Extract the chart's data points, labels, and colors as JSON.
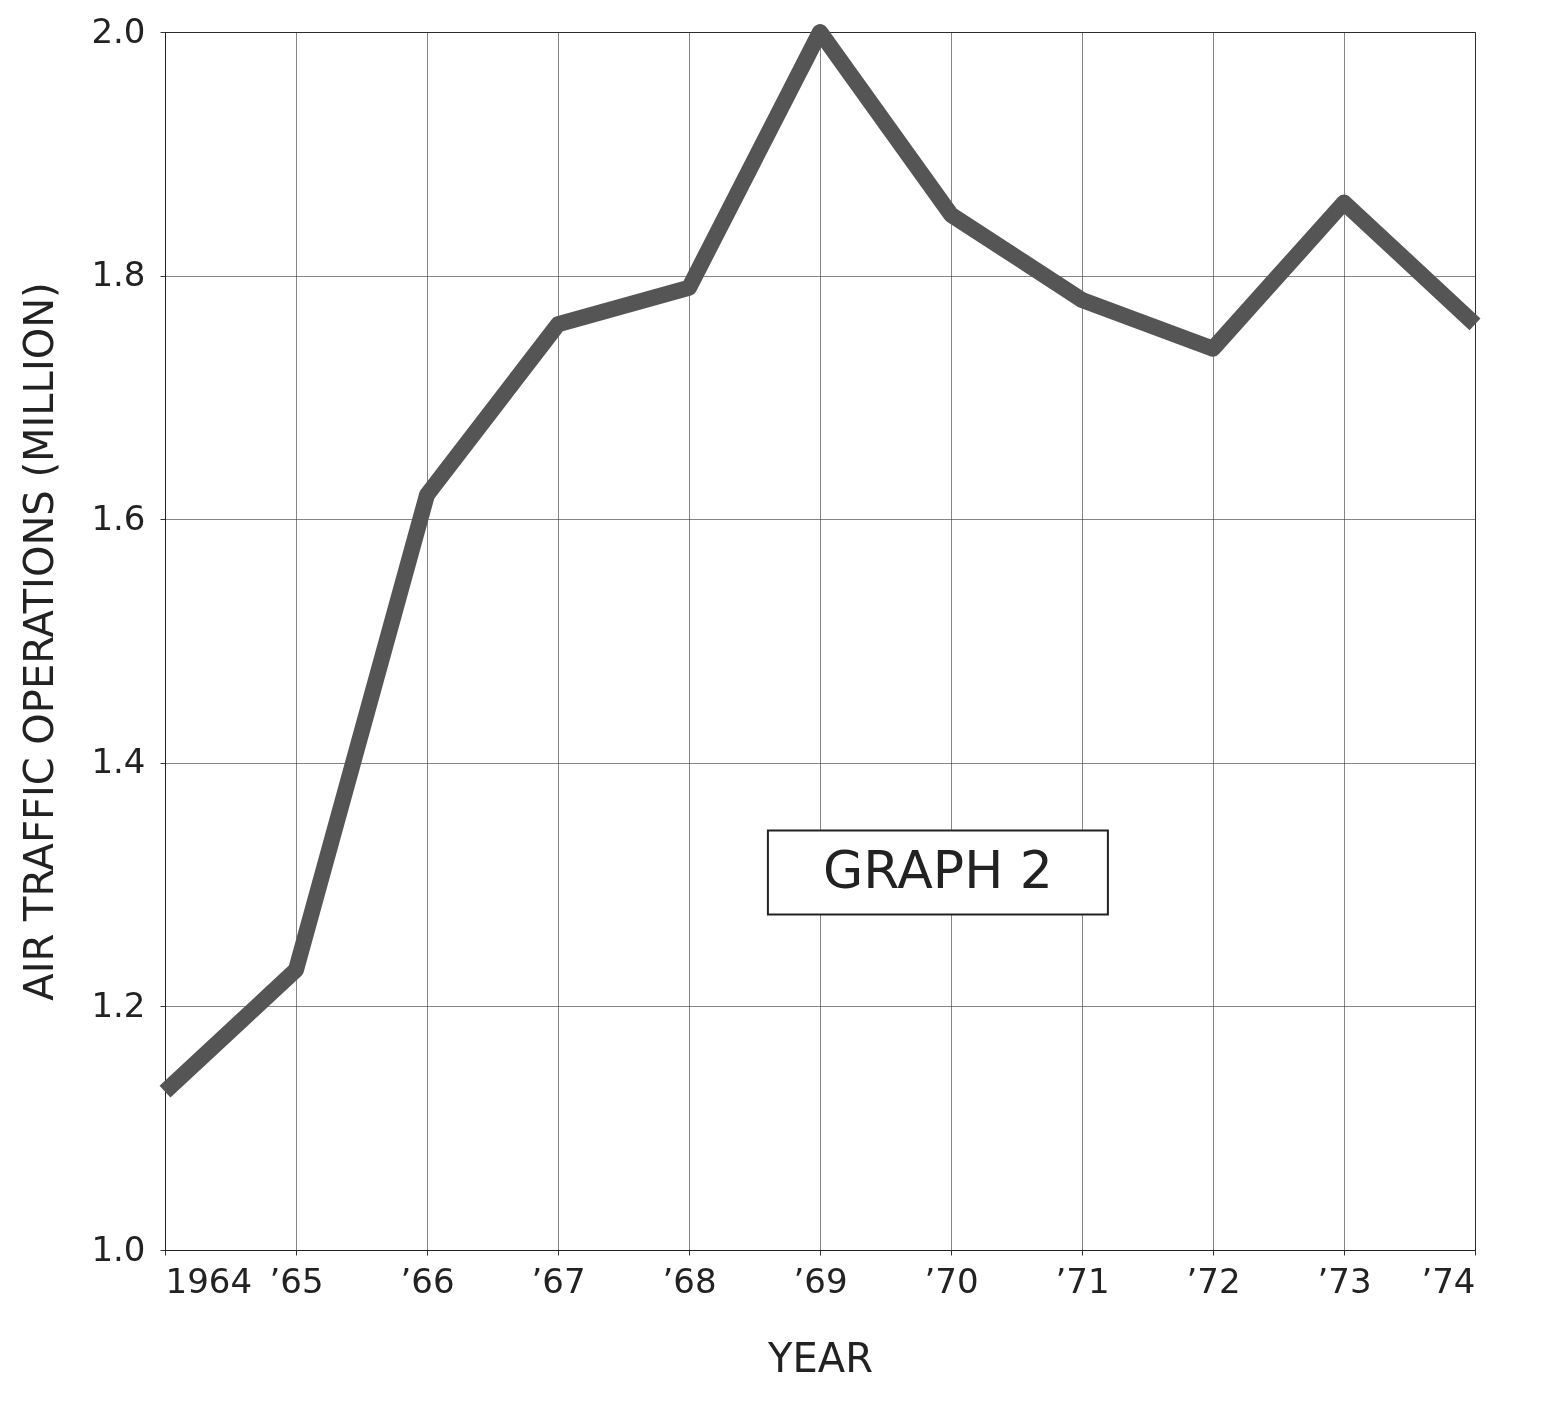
{
  "chart_data": {
    "type": "line",
    "xlabel": "YEAR",
    "ylabel": "AIR TRAFFIC OPERATIONS (MILLION)",
    "categories": [
      "1964",
      "’65",
      "’66",
      "’67",
      "’68",
      "’69",
      "’70",
      "’71",
      "’72",
      "’73",
      "’74"
    ],
    "series": [
      {
        "color": "#555555",
        "values": [
          1.13,
          1.23,
          1.62,
          1.76,
          1.79,
          2.0,
          1.85,
          1.78,
          1.74,
          1.86,
          1.76
        ]
      }
    ],
    "ylim": [
      1.0,
      2.0
    ],
    "yticks": [
      {
        "value": 1.0,
        "label": "1.0"
      },
      {
        "value": 1.2,
        "label": "1.2"
      },
      {
        "value": 1.4,
        "label": "1.4"
      },
      {
        "value": 1.6,
        "label": "1.6"
      },
      {
        "value": 1.8,
        "label": "1.8"
      },
      {
        "value": 2.0,
        "label": "2.0"
      }
    ],
    "grid": true,
    "legend": false,
    "marker": "none",
    "line_style": "solid",
    "annotations": [
      "GRAPH 2"
    ]
  }
}
